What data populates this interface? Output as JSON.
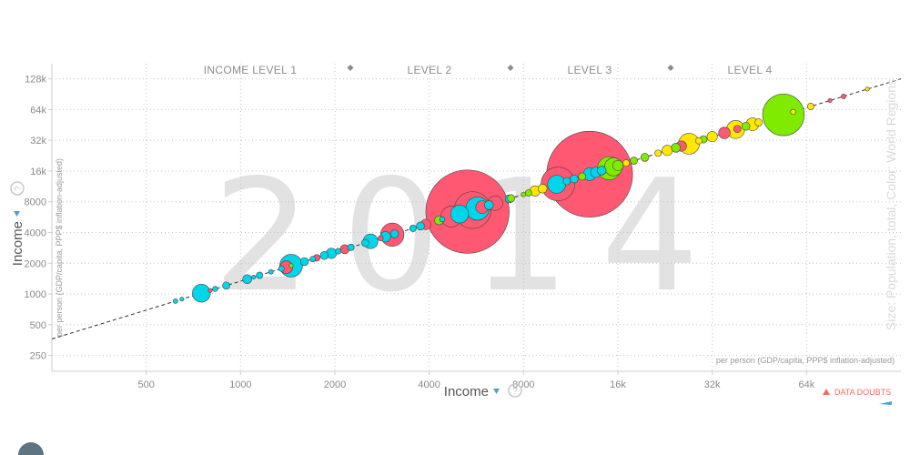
{
  "chart_data": {
    "type": "scatter",
    "year": "2014",
    "xlabel": "Income",
    "ylabel": "Income",
    "x_sublabel": "per person (GDP/capita, PPP$ inflation-adjusted)",
    "y_sublabel": "per person (GDP/capita, PPP$ inflation-adjusted)",
    "size_label": "Size: Population, total, Color: World Regions",
    "x_scale": "log",
    "y_scale": "log",
    "xlim": [
      250,
      128000
    ],
    "ylim": [
      175,
      180000
    ],
    "x_ticks": [
      500,
      1000,
      2000,
      4000,
      8000,
      16000,
      32000,
      64000
    ],
    "x_tick_labels": [
      "500",
      "1000",
      "2000",
      "4000",
      "8000",
      "16k",
      "32k",
      "64k"
    ],
    "y_ticks": [
      250,
      500,
      1000,
      2000,
      4000,
      8000,
      16000,
      32000,
      64000,
      128000
    ],
    "y_tick_labels": [
      "250",
      "500",
      "1000",
      "2000",
      "4000",
      "8000",
      "16k",
      "32k",
      "64k",
      "128k"
    ],
    "income_levels": [
      "INCOME LEVEL 1",
      "LEVEL 2",
      "LEVEL 3",
      "LEVEL 4"
    ],
    "grid": true,
    "warning": "DATA DOUBTS",
    "region_colors": {
      "africa": "#00d5e9",
      "asia": "#ff5872",
      "europe": "#ffe700",
      "americas": "#7feb00"
    },
    "points": [
      {
        "x": 620,
        "pop": 4,
        "region": "africa"
      },
      {
        "x": 650,
        "pop": 3,
        "region": "africa"
      },
      {
        "x": 750,
        "pop": 60,
        "region": "africa"
      },
      {
        "x": 800,
        "pop": 3,
        "region": "asia"
      },
      {
        "x": 830,
        "pop": 5,
        "region": "africa"
      },
      {
        "x": 900,
        "pop": 10,
        "region": "africa"
      },
      {
        "x": 1050,
        "pop": 15,
        "region": "africa"
      },
      {
        "x": 1100,
        "pop": 3,
        "region": "africa"
      },
      {
        "x": 1150,
        "pop": 8,
        "region": "africa"
      },
      {
        "x": 1250,
        "pop": 4,
        "region": "africa"
      },
      {
        "x": 1350,
        "pop": 6,
        "region": "africa"
      },
      {
        "x": 1400,
        "pop": 30,
        "region": "asia"
      },
      {
        "x": 1450,
        "pop": 95,
        "region": "africa"
      },
      {
        "x": 1450,
        "pop": 2,
        "region": "americas"
      },
      {
        "x": 1600,
        "pop": 12,
        "region": "africa"
      },
      {
        "x": 1700,
        "pop": 6,
        "region": "africa"
      },
      {
        "x": 1750,
        "pop": 8,
        "region": "asia"
      },
      {
        "x": 1850,
        "pop": 12,
        "region": "africa"
      },
      {
        "x": 1950,
        "pop": 20,
        "region": "africa"
      },
      {
        "x": 2050,
        "pop": 6,
        "region": "africa"
      },
      {
        "x": 2150,
        "pop": 15,
        "region": "asia"
      },
      {
        "x": 2250,
        "pop": 8,
        "region": "africa"
      },
      {
        "x": 2500,
        "pop": 10,
        "region": "africa"
      },
      {
        "x": 2600,
        "pop": 40,
        "region": "africa"
      },
      {
        "x": 2800,
        "pop": 5,
        "region": "asia"
      },
      {
        "x": 2900,
        "pop": 20,
        "region": "africa"
      },
      {
        "x": 3050,
        "pop": 100,
        "region": "asia"
      },
      {
        "x": 3100,
        "pop": 12,
        "region": "africa"
      },
      {
        "x": 3550,
        "pop": 8,
        "region": "africa"
      },
      {
        "x": 3750,
        "pop": 12,
        "region": "africa"
      },
      {
        "x": 3900,
        "pop": 20,
        "region": "asia"
      },
      {
        "x": 4300,
        "pop": 15,
        "region": "americas"
      },
      {
        "x": 4400,
        "pop": 5,
        "region": "africa"
      },
      {
        "x": 4700,
        "pop": 80,
        "region": "asia"
      },
      {
        "x": 5000,
        "pop": 60,
        "region": "africa"
      },
      {
        "x": 5300,
        "pop": 1280,
        "region": "asia"
      },
      {
        "x": 5500,
        "pop": 250,
        "region": "asia"
      },
      {
        "x": 5700,
        "pop": 100,
        "region": "africa"
      },
      {
        "x": 5900,
        "pop": 30,
        "region": "asia"
      },
      {
        "x": 6200,
        "pop": 15,
        "region": "africa"
      },
      {
        "x": 6500,
        "pop": 40,
        "region": "asia"
      },
      {
        "x": 7200,
        "pop": 12,
        "region": "africa"
      },
      {
        "x": 7300,
        "pop": 10,
        "region": "americas"
      },
      {
        "x": 8000,
        "pop": 4,
        "region": "americas"
      },
      {
        "x": 8300,
        "pop": 8,
        "region": "americas"
      },
      {
        "x": 8700,
        "pop": 20,
        "region": "europe"
      },
      {
        "x": 9200,
        "pop": 15,
        "region": "europe"
      },
      {
        "x": 10300,
        "pop": 210,
        "region": "asia"
      },
      {
        "x": 10200,
        "pop": 60,
        "region": "africa"
      },
      {
        "x": 11000,
        "pop": 10,
        "region": "africa"
      },
      {
        "x": 11600,
        "pop": 12,
        "region": "africa"
      },
      {
        "x": 12300,
        "pop": 10,
        "region": "americas"
      },
      {
        "x": 13000,
        "pop": 1360,
        "region": "asia"
      },
      {
        "x": 13000,
        "pop": 30,
        "region": "africa"
      },
      {
        "x": 13600,
        "pop": 20,
        "region": "africa"
      },
      {
        "x": 14200,
        "pop": 15,
        "region": "africa"
      },
      {
        "x": 15000,
        "pop": 100,
        "region": "americas"
      },
      {
        "x": 15500,
        "pop": 60,
        "region": "americas"
      },
      {
        "x": 16000,
        "pop": 20,
        "region": "americas"
      },
      {
        "x": 17000,
        "pop": 8,
        "region": "europe"
      },
      {
        "x": 18000,
        "pop": 10,
        "region": "americas"
      },
      {
        "x": 19500,
        "pop": 12,
        "region": "americas"
      },
      {
        "x": 21500,
        "pop": 8,
        "region": "europe"
      },
      {
        "x": 23000,
        "pop": 20,
        "region": "europe"
      },
      {
        "x": 24500,
        "pop": 15,
        "region": "americas"
      },
      {
        "x": 25500,
        "pop": 20,
        "region": "asia"
      },
      {
        "x": 27000,
        "pop": 80,
        "region": "europe"
      },
      {
        "x": 29000,
        "pop": 8,
        "region": "europe"
      },
      {
        "x": 30000,
        "pop": 10,
        "region": "americas"
      },
      {
        "x": 32000,
        "pop": 20,
        "region": "europe"
      },
      {
        "x": 35000,
        "pop": 25,
        "region": "asia"
      },
      {
        "x": 38000,
        "pop": 60,
        "region": "europe"
      },
      {
        "x": 38500,
        "pop": 10,
        "region": "asia"
      },
      {
        "x": 41000,
        "pop": 12,
        "region": "americas"
      },
      {
        "x": 43000,
        "pop": 30,
        "region": "europe"
      },
      {
        "x": 45000,
        "pop": 10,
        "region": "europe"
      },
      {
        "x": 54000,
        "pop": 320,
        "region": "americas"
      },
      {
        "x": 58000,
        "pop": 5,
        "region": "europe"
      },
      {
        "x": 66000,
        "pop": 8,
        "region": "europe"
      },
      {
        "x": 76000,
        "pop": 3,
        "region": "asia"
      },
      {
        "x": 84000,
        "pop": 4,
        "region": "asia"
      },
      {
        "x": 100000,
        "pop": 2,
        "region": "europe"
      }
    ]
  }
}
